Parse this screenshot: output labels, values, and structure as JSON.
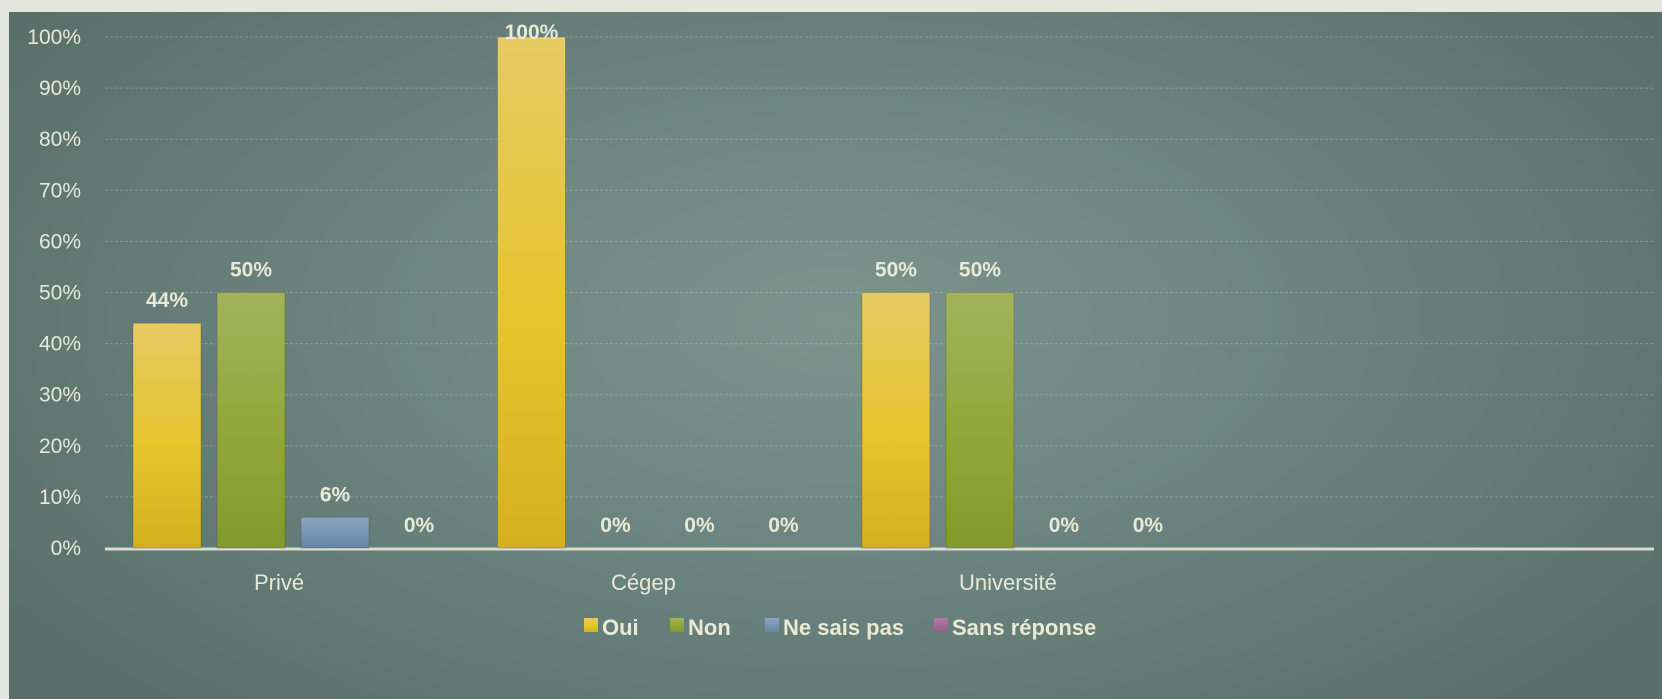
{
  "chart_data": {
    "type": "bar",
    "categories": [
      "Privé",
      "Cégep",
      "Université"
    ],
    "series": [
      {
        "name": "Oui",
        "values": [
          44,
          100,
          50
        ],
        "labels": [
          "44%",
          "100%",
          "50%"
        ],
        "color": "#e3c42e"
      },
      {
        "name": "Non",
        "values": [
          50,
          0,
          50
        ],
        "labels": [
          "50%",
          "0%",
          "50%"
        ],
        "color": "#94a83c"
      },
      {
        "name": "Ne sais pas",
        "values": [
          6,
          0,
          0
        ],
        "labels": [
          "6%",
          "0%",
          "0%"
        ],
        "color": "#6f92b0"
      },
      {
        "name": "Sans réponse",
        "values": [
          0,
          0,
          0
        ],
        "labels": [
          "0%",
          "0%",
          "0%"
        ],
        "color": "#a4679a"
      }
    ],
    "yticks": [
      "0%",
      "10%",
      "20%",
      "30%",
      "40%",
      "50%",
      "60%",
      "70%",
      "80%",
      "90%",
      "100%"
    ],
    "ylim": [
      0,
      100
    ],
    "grid": true,
    "legend_position": "bottom",
    "title": "",
    "xlabel": "",
    "ylabel": ""
  }
}
